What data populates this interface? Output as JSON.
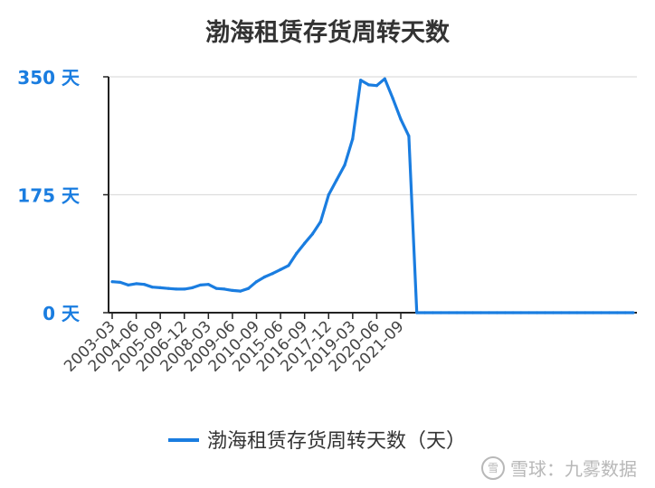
{
  "chart_data": {
    "type": "line",
    "title": "渤海租赁存货周转天数",
    "xlabel": "",
    "ylabel": "",
    "ylim": [
      0,
      350
    ],
    "y_ticks": [
      {
        "value": 0,
        "label": "0 天"
      },
      {
        "value": 175,
        "label": "175 天"
      },
      {
        "value": 350,
        "label": "350 天"
      }
    ],
    "grid": true,
    "legend_position": "bottom",
    "x_tick_labels": [
      "2003-03",
      "2004-06",
      "2005-09",
      "2006-12",
      "2008-03",
      "2009-06",
      "2010-09",
      "2015-06",
      "2016-09",
      "2017-12",
      "2019-03",
      "2020-06",
      "2021-09"
    ],
    "series": [
      {
        "name": "渤海租赁存货周转天数（天）",
        "color": "#1a7de0",
        "values": [
          46,
          45,
          41,
          43,
          42,
          38,
          37,
          36,
          35,
          35,
          37,
          41,
          42,
          36,
          35,
          33,
          32,
          36,
          46,
          53,
          58,
          64,
          70,
          88,
          103,
          117,
          135,
          175,
          197,
          219,
          258,
          345,
          338,
          337,
          347,
          318,
          287,
          262,
          0,
          0,
          0,
          0,
          0,
          0,
          0,
          0,
          0,
          0,
          0,
          0,
          0,
          0,
          0,
          0,
          0,
          0,
          0,
          0,
          0,
          0,
          0,
          0,
          0,
          0,
          0,
          0
        ]
      }
    ]
  },
  "watermark": {
    "logo": "雪",
    "text": "雪球：九雾数据"
  }
}
